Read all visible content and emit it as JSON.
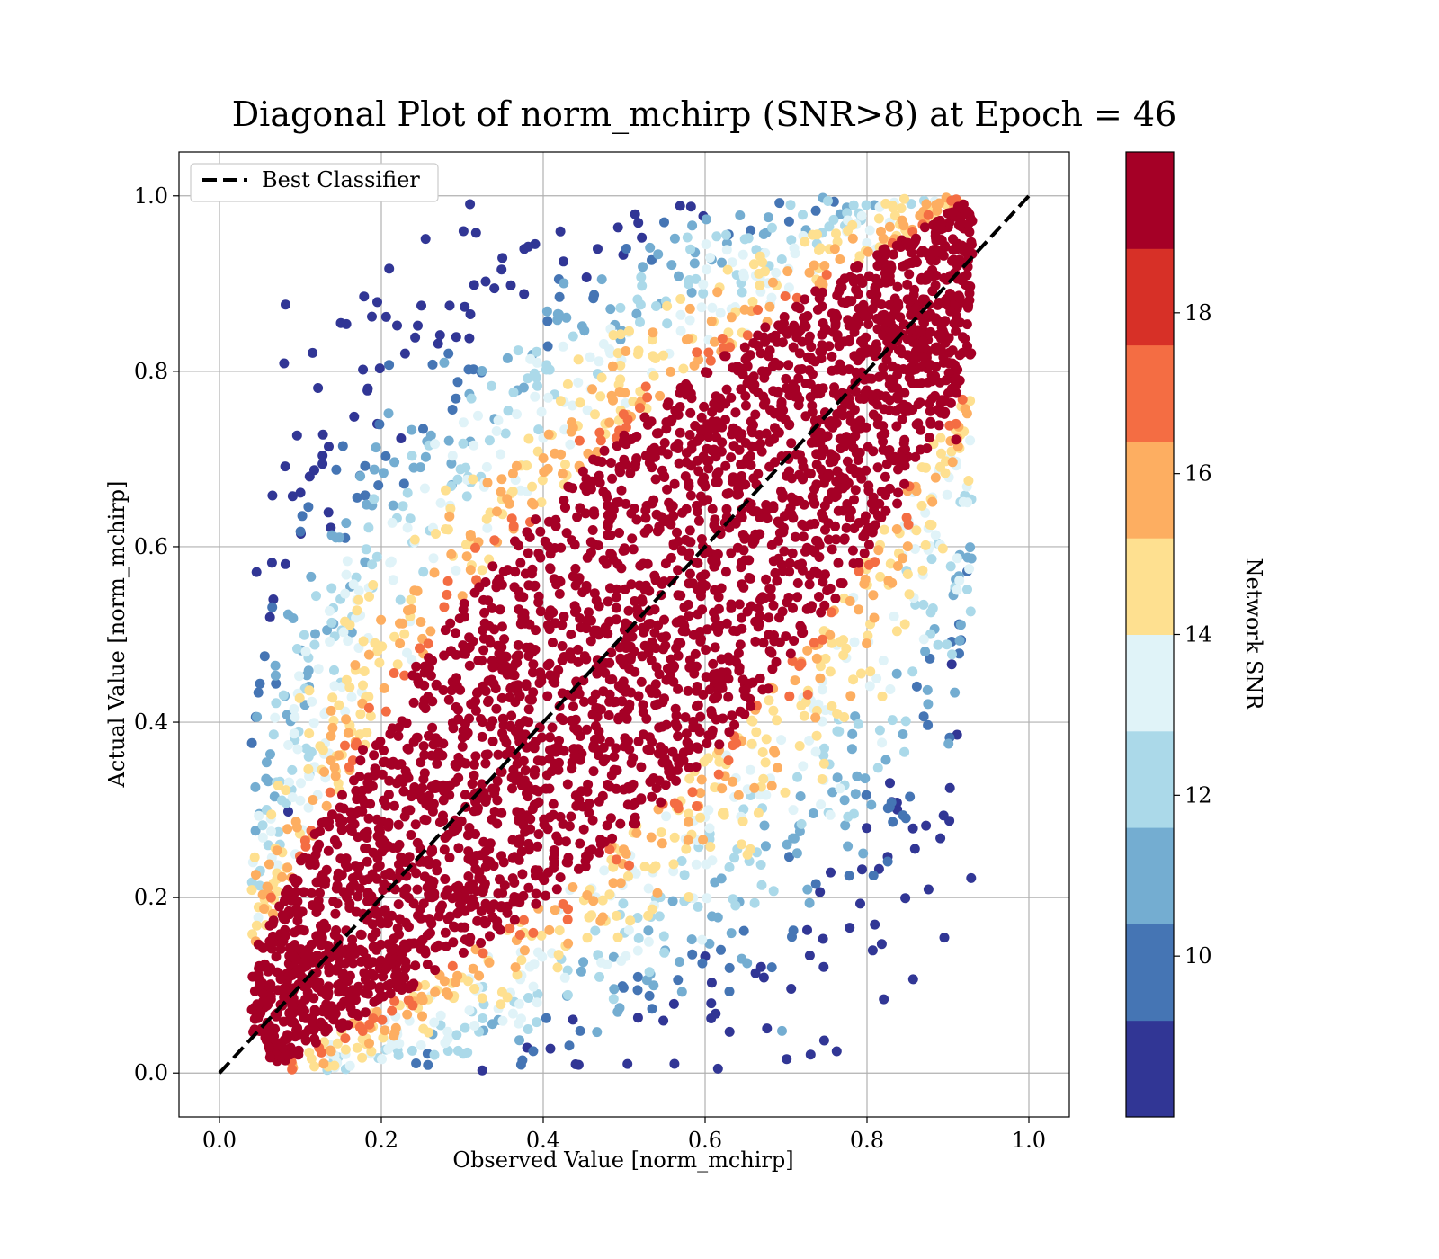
{
  "chart_data": {
    "type": "scatter",
    "title": "Diagonal Plot of norm_mchirp (SNR>8) at Epoch = 46",
    "xlabel": "Observed Value [norm_mchirp]",
    "ylabel": "Actual Value [norm_mchirp]",
    "xlim": [
      -0.05,
      1.05
    ],
    "ylim": [
      -0.05,
      1.05
    ],
    "xticks": [
      "0.0",
      "0.2",
      "0.4",
      "0.6",
      "0.8",
      "1.0"
    ],
    "yticks": [
      "0.0",
      "0.2",
      "0.4",
      "0.6",
      "0.8",
      "1.0"
    ],
    "grid": true,
    "legend": {
      "position": "top-left",
      "label": "Best Classifier"
    },
    "reference_line": {
      "name": "Best Classifier",
      "style": "dashed",
      "color": "#000000",
      "x": [
        0,
        1
      ],
      "y": [
        0,
        1
      ]
    },
    "colorbar": {
      "label": "Network SNR",
      "range": [
        8,
        20
      ],
      "ticks": [
        "10",
        "12",
        "14",
        "16",
        "18"
      ],
      "tick_values": [
        10,
        12,
        14,
        16,
        18
      ],
      "colors": [
        "#313695",
        "#4575b4",
        "#74add1",
        "#abd9e9",
        "#e0f3f8",
        "#fee090",
        "#fdae61",
        "#f46d43",
        "#d73027",
        "#a50026"
      ]
    },
    "scatter_description": {
      "band_lower_edge": [
        [
          0.05,
          0.0
        ],
        [
          0.3,
          0.03
        ],
        [
          0.5,
          0.2
        ],
        [
          0.7,
          0.25
        ],
        [
          0.9,
          0.55
        ]
      ],
      "band_upper_edge": [
        [
          0.1,
          0.2
        ],
        [
          0.3,
          0.5
        ],
        [
          0.55,
          0.8
        ],
        [
          0.65,
          0.97
        ],
        [
          0.8,
          1.0
        ]
      ],
      "outliers": [
        {
          "x": 0.15,
          "y": 0.855,
          "snr": 9
        },
        {
          "x": 0.245,
          "y": 0.852,
          "snr": 9
        },
        {
          "x": 0.31,
          "y": 0.865,
          "snr": 9
        },
        {
          "x": 0.39,
          "y": 0.945,
          "snr": 9
        },
        {
          "x": 0.36,
          "y": 0.898,
          "snr": 9
        },
        {
          "x": 0.195,
          "y": 0.74,
          "snr": 9
        },
        {
          "x": 0.085,
          "y": 0.298,
          "snr": 9
        },
        {
          "x": 0.6,
          "y": 0.133,
          "snr": 9
        },
        {
          "x": 0.63,
          "y": 0.093,
          "snr": 10
        },
        {
          "x": 0.695,
          "y": 0.048,
          "snr": 11
        },
        {
          "x": 0.44,
          "y": 0.01,
          "snr": 9
        },
        {
          "x": 0.91,
          "y": 0.722,
          "snr": 19
        },
        {
          "x": 0.88,
          "y": 0.586,
          "snr": 12
        },
        {
          "x": 0.88,
          "y": 0.625,
          "snr": 15
        }
      ]
    }
  }
}
